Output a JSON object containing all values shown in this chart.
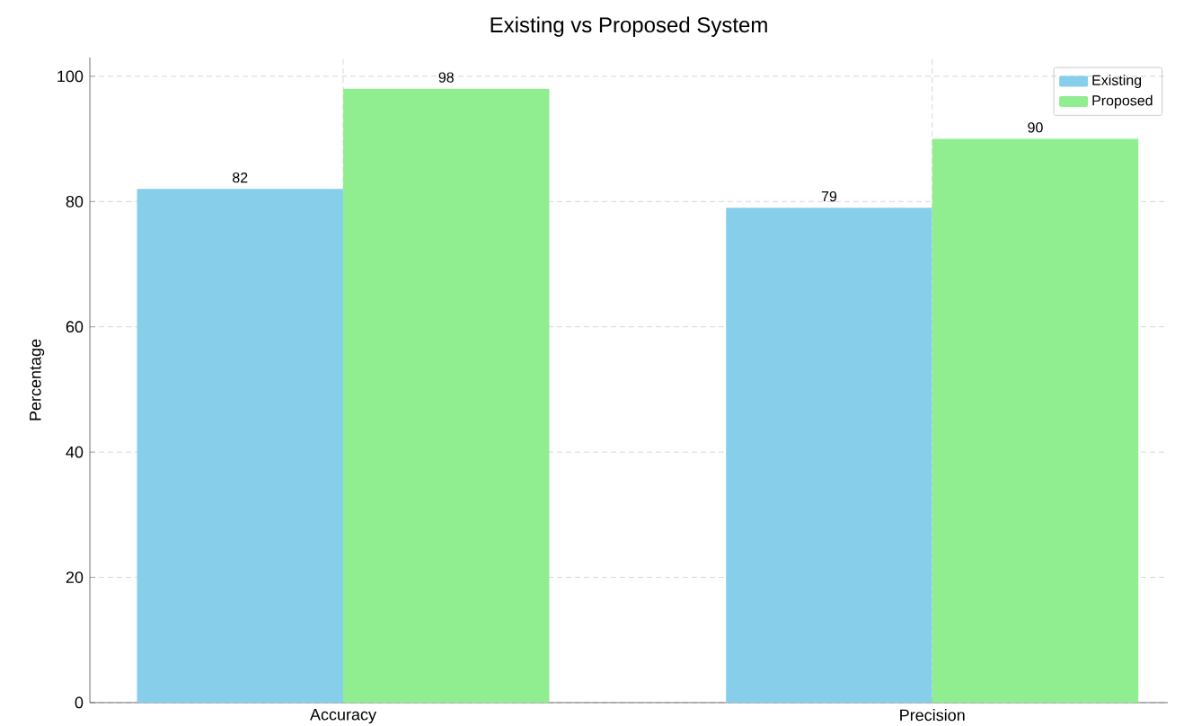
{
  "chart_data": {
    "type": "bar",
    "title": "Existing vs Proposed System",
    "ylabel": "Percentage",
    "categories": [
      "Accuracy",
      "Precision"
    ],
    "series": [
      {
        "name": "Existing",
        "color": "#87ceeb",
        "values": [
          82,
          79
        ]
      },
      {
        "name": "Proposed",
        "color": "#90ee90",
        "values": [
          98,
          90
        ]
      }
    ],
    "ylim": [
      0,
      103
    ],
    "yticks": [
      0,
      20,
      40,
      60,
      80,
      100
    ],
    "grid": true,
    "legend": "top right",
    "data_labels": true
  }
}
